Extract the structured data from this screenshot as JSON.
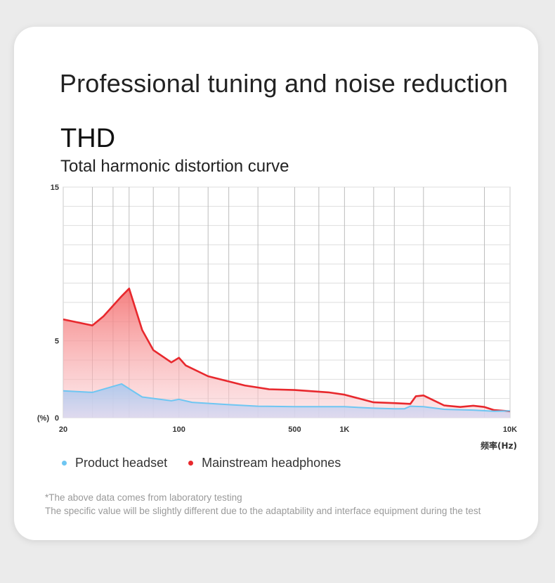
{
  "page": {
    "headline": "Professional tuning and noise reduction",
    "title": "THD",
    "subtitle": "Total harmonic distortion curve",
    "notes": [
      "*The above data comes from laboratory testing",
      "The specific value will be slightly different due to the adaptability and interface equipment during the test"
    ]
  },
  "chart_data": {
    "type": "area",
    "title": "THD",
    "subtitle": "Total harmonic distortion curve",
    "x_scale": "log",
    "xlim": [
      20,
      10000
    ],
    "ylim": [
      0,
      15
    ],
    "ylabel": "(%)",
    "xlabel": "频率(Hz)",
    "x_ticks": [
      {
        "value": 20,
        "label": "20"
      },
      {
        "value": 100,
        "label": "100"
      },
      {
        "value": 500,
        "label": "500"
      },
      {
        "value": 1000,
        "label": "1K"
      },
      {
        "value": 10000,
        "label": "10K"
      }
    ],
    "y_ticks": [
      {
        "value": 0,
        "label": "0"
      },
      {
        "value": 5,
        "label": "5"
      },
      {
        "value": 15,
        "label": "15"
      }
    ],
    "grid": true,
    "legend": "bottom-left",
    "series": [
      {
        "name": "Product headset",
        "color": "#6ec6f2",
        "points": [
          [
            20,
            1.75
          ],
          [
            30,
            1.65
          ],
          [
            45,
            2.2
          ],
          [
            60,
            1.35
          ],
          [
            90,
            1.1
          ],
          [
            100,
            1.2
          ],
          [
            120,
            1.0
          ],
          [
            200,
            0.85
          ],
          [
            300,
            0.75
          ],
          [
            500,
            0.72
          ],
          [
            1000,
            0.72
          ],
          [
            1500,
            0.62
          ],
          [
            2000,
            0.58
          ],
          [
            2300,
            0.58
          ],
          [
            2500,
            0.75
          ],
          [
            3000,
            0.72
          ],
          [
            4000,
            0.55
          ],
          [
            6000,
            0.5
          ],
          [
            8000,
            0.42
          ],
          [
            10000,
            0.45
          ]
        ]
      },
      {
        "name": "Mainstream headphones",
        "color": "#e8282d",
        "points": [
          [
            20,
            6.4
          ],
          [
            30,
            6.0
          ],
          [
            35,
            6.6
          ],
          [
            45,
            7.9
          ],
          [
            50,
            8.4
          ],
          [
            60,
            5.7
          ],
          [
            70,
            4.4
          ],
          [
            90,
            3.6
          ],
          [
            100,
            3.9
          ],
          [
            110,
            3.4
          ],
          [
            150,
            2.7
          ],
          [
            250,
            2.1
          ],
          [
            350,
            1.85
          ],
          [
            500,
            1.8
          ],
          [
            800,
            1.65
          ],
          [
            1000,
            1.5
          ],
          [
            1500,
            1.0
          ],
          [
            2000,
            0.95
          ],
          [
            2500,
            0.9
          ],
          [
            2700,
            1.4
          ],
          [
            3000,
            1.45
          ],
          [
            3500,
            1.1
          ],
          [
            4000,
            0.8
          ],
          [
            5000,
            0.7
          ],
          [
            6000,
            0.78
          ],
          [
            7000,
            0.7
          ],
          [
            8000,
            0.5
          ],
          [
            10000,
            0.42
          ]
        ]
      }
    ]
  }
}
